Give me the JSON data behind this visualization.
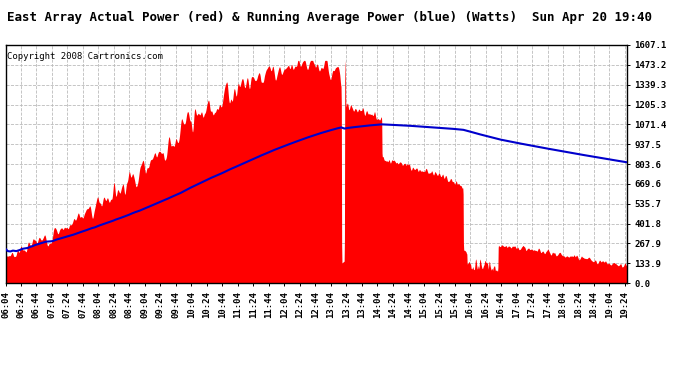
{
  "title": "East Array Actual Power (red) & Running Average Power (blue) (Watts)  Sun Apr 20 19:40",
  "copyright": "Copyright 2008 Cartronics.com",
  "y_ticks": [
    0.0,
    133.9,
    267.9,
    401.8,
    535.7,
    669.6,
    803.6,
    937.5,
    1071.4,
    1205.3,
    1339.3,
    1473.2,
    1607.1
  ],
  "y_max": 1607.1,
  "x_start_min": 364,
  "x_end_min": 1166,
  "x_tick_interval_min": 20,
  "bg_color": "#ffffff",
  "plot_bg_color": "#ffffff",
  "grid_color": "#bbbbbb",
  "actual_color": "#ff0000",
  "average_color": "#0000cc",
  "border_color": "#000000",
  "title_fontsize": 9,
  "copyright_fontsize": 6.5,
  "tick_fontsize": 6.5
}
